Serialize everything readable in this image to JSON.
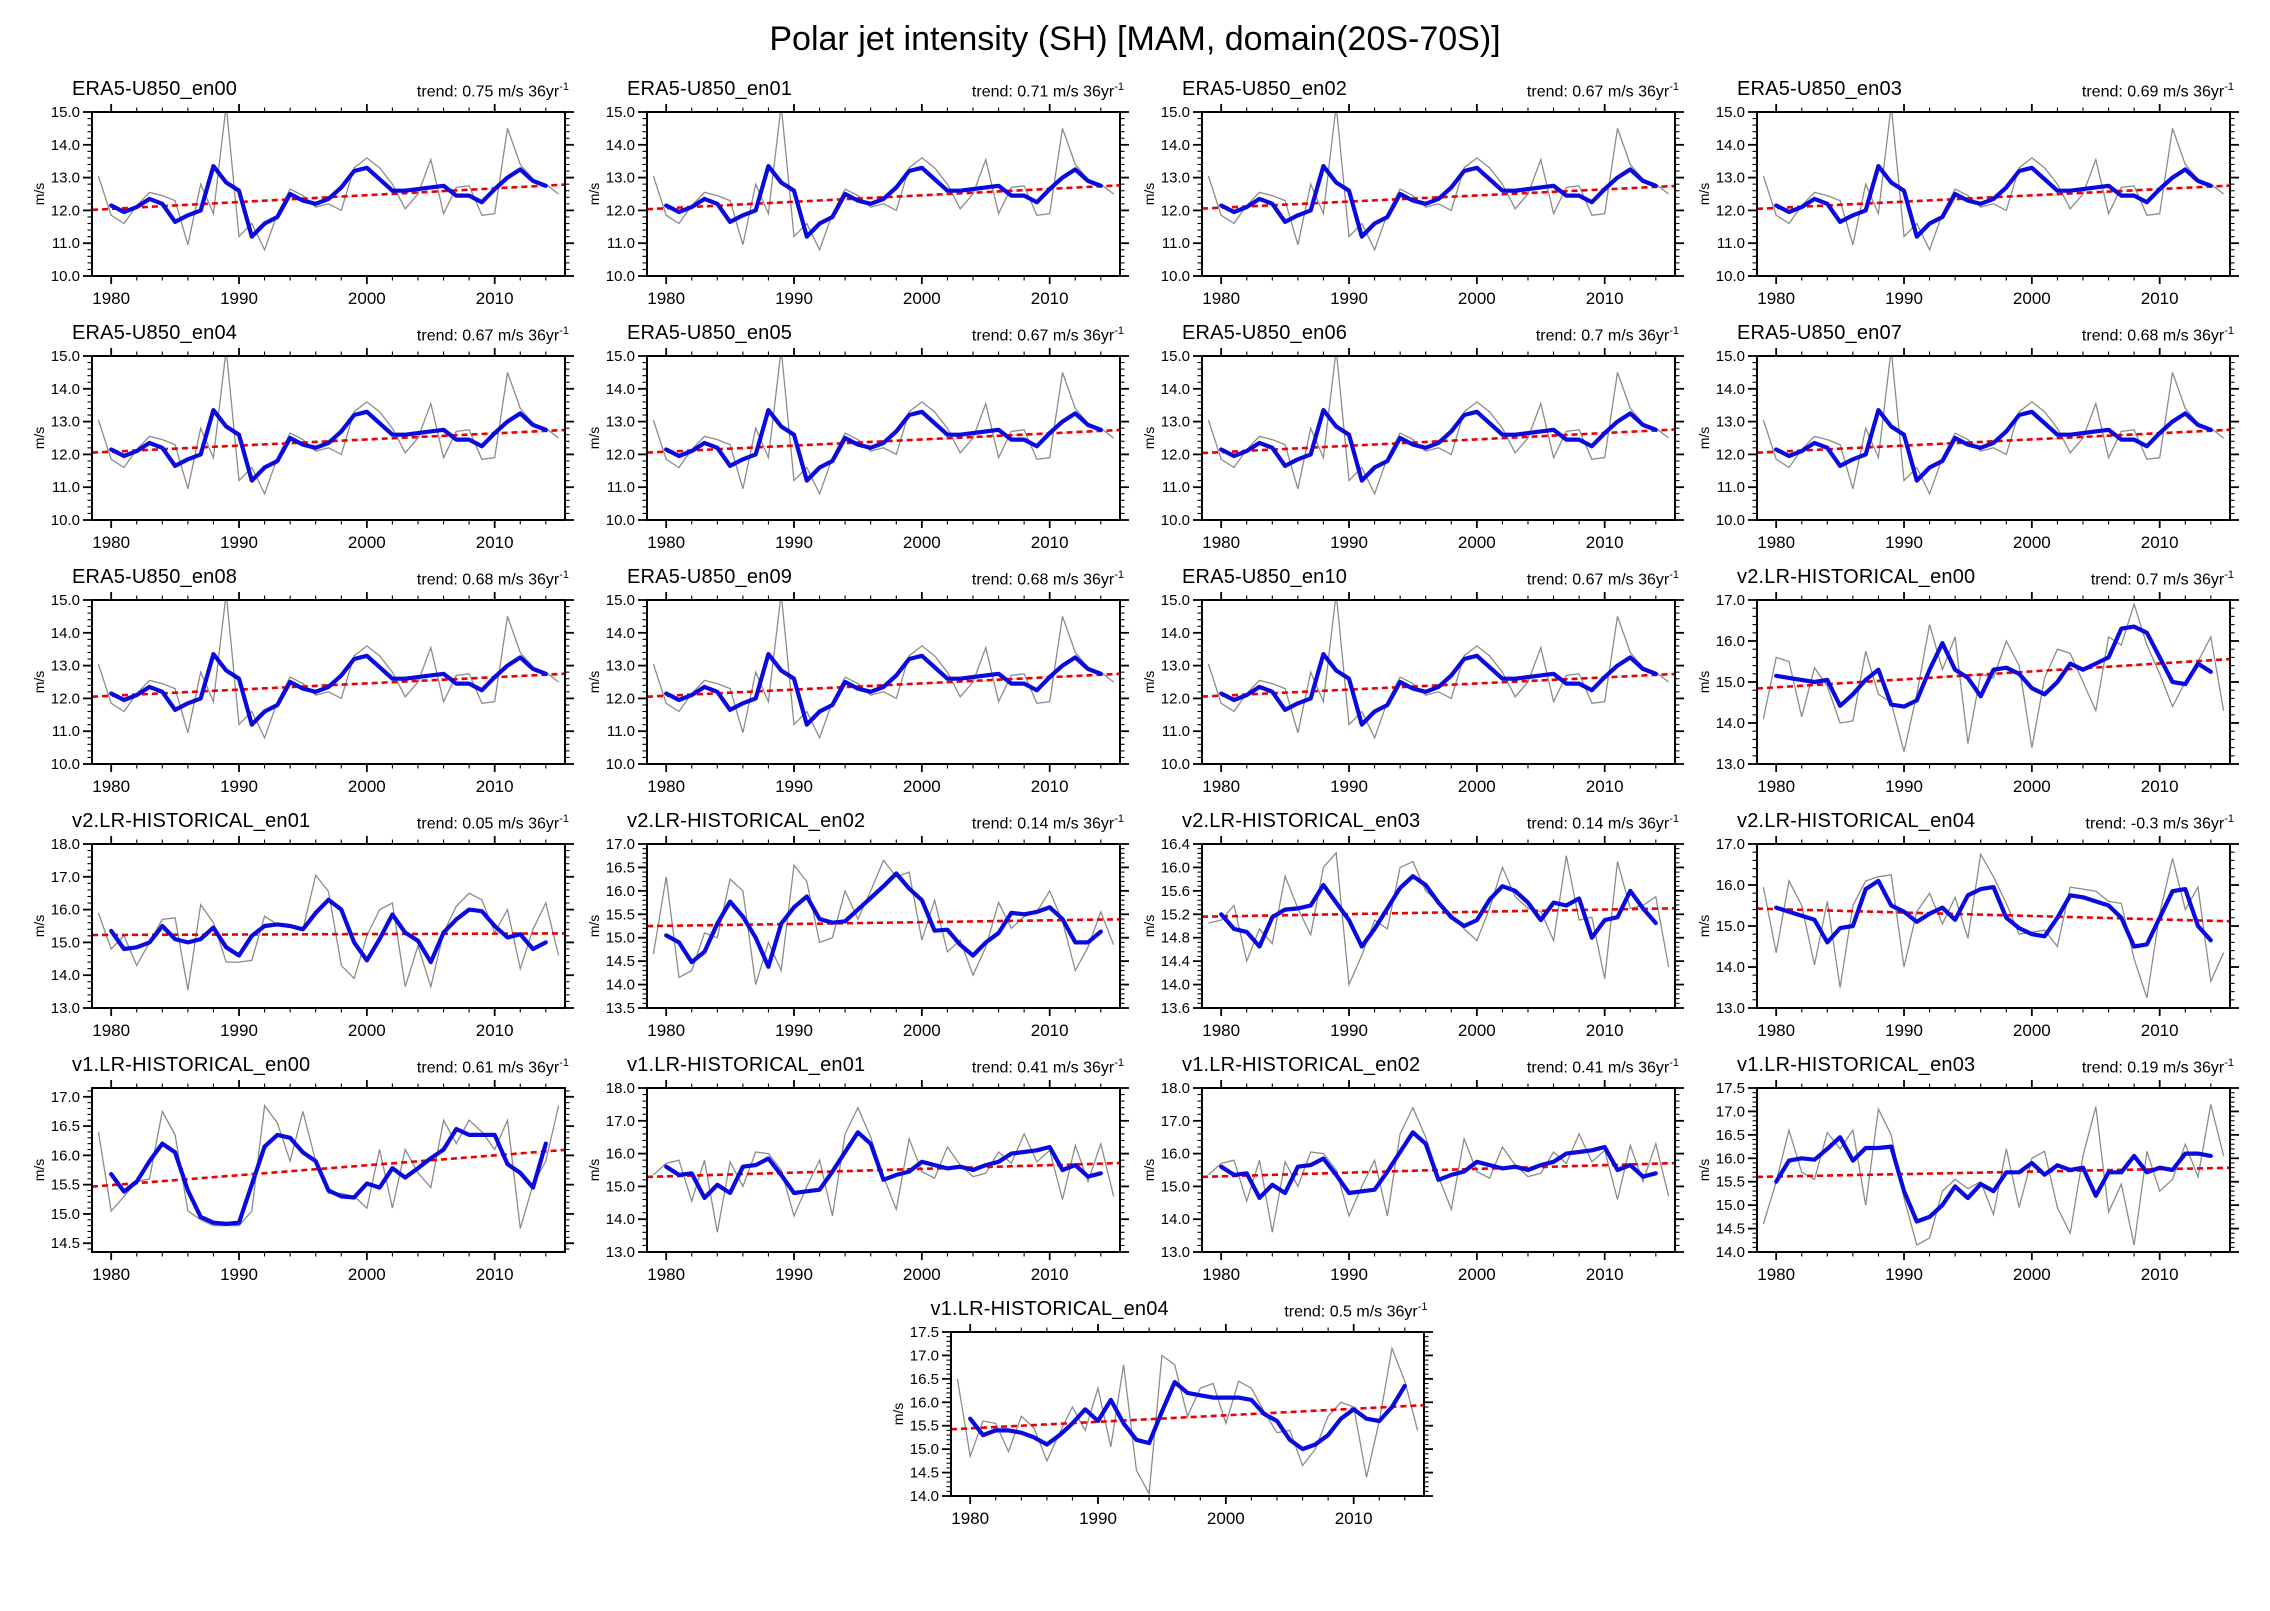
{
  "page": {
    "title": "Polar jet intensity (SH) [MAM, domain(20S-70S)]"
  },
  "trend_prefix": "trend: ",
  "trend_suffix": " m/s 36yr",
  "trend_sup": "-1",
  "axis": {
    "ylabel": "m/s",
    "xmin": 1978.5,
    "xmax": 2015.5,
    "x_major_ticks": [
      1980,
      1990,
      2000,
      2010
    ],
    "x_minor_step": 2,
    "gray_start_year": 1979,
    "blue_start_year": 1980
  },
  "colors": {
    "gray": "#8c8c8c",
    "blue": "#0a0ae0",
    "red": "#ee0000",
    "frame": "#000000"
  },
  "shared_series": {
    "era5": {
      "gray": [
        13.05,
        11.85,
        11.6,
        12.15,
        12.55,
        12.45,
        12.3,
        10.95,
        12.8,
        11.9,
        15.2,
        11.2,
        11.6,
        10.8,
        11.9,
        12.65,
        12.45,
        12.1,
        12.2,
        12.0,
        13.3,
        13.6,
        13.3,
        12.8,
        12.05,
        12.5,
        13.55,
        11.9,
        12.7,
        12.75,
        11.85,
        11.9,
        14.5,
        13.4,
        12.95,
        12.8,
        12.5
      ],
      "blue": [
        12.15,
        11.95,
        12.1,
        12.35,
        12.2,
        11.65,
        11.85,
        12.0,
        13.35,
        12.85,
        12.6,
        11.2,
        11.6,
        11.8,
        12.5,
        12.3,
        12.2,
        12.35,
        12.7,
        13.2,
        13.3,
        12.95,
        12.6,
        12.6,
        12.65,
        12.7,
        12.75,
        12.45,
        12.45,
        12.25,
        12.65,
        13.0,
        13.25,
        12.9,
        12.75
      ]
    },
    "v1en01": {
      "gray": [
        15.35,
        15.7,
        15.8,
        14.55,
        15.8,
        13.6,
        15.75,
        15.0,
        16.05,
        16.0,
        15.5,
        14.1,
        15.0,
        15.8,
        14.1,
        16.6,
        17.4,
        16.5,
        15.3,
        14.3,
        16.45,
        15.45,
        15.25,
        16.2,
        15.65,
        15.3,
        15.4,
        16.05,
        15.7,
        16.6,
        15.75,
        16.1,
        14.6,
        16.25,
        15.15,
        16.3,
        14.7
      ],
      "blue": [
        15.6,
        15.35,
        15.4,
        14.65,
        15.05,
        14.8,
        15.6,
        15.65,
        15.85,
        15.35,
        14.8,
        14.85,
        14.9,
        15.45,
        16.05,
        16.65,
        16.3,
        15.2,
        15.35,
        15.45,
        15.75,
        15.65,
        15.55,
        15.6,
        15.5,
        15.65,
        15.75,
        16.0,
        16.05,
        16.1,
        16.2,
        15.5,
        15.65,
        15.3,
        15.4
      ]
    }
  },
  "chart_data": [
    {
      "type": "line",
      "title": "ERA5-U850_en00",
      "trend_value": "0.75",
      "ylabel": "m/s",
      "ylim": [
        10.0,
        15.0
      ],
      "ytick_step": 1.0,
      "trend_mid": 12.4,
      "ref": "era5"
    },
    {
      "type": "line",
      "title": "ERA5-U850_en01",
      "trend_value": "0.71",
      "ylabel": "m/s",
      "ylim": [
        10.0,
        15.0
      ],
      "ytick_step": 1.0,
      "trend_mid": 12.4,
      "ref": "era5"
    },
    {
      "type": "line",
      "title": "ERA5-U850_en02",
      "trend_value": "0.67",
      "ylabel": "m/s",
      "ylim": [
        10.0,
        15.0
      ],
      "ytick_step": 1.0,
      "trend_mid": 12.4,
      "ref": "era5"
    },
    {
      "type": "line",
      "title": "ERA5-U850_en03",
      "trend_value": "0.69",
      "ylabel": "m/s",
      "ylim": [
        10.0,
        15.0
      ],
      "ytick_step": 1.0,
      "trend_mid": 12.4,
      "ref": "era5"
    },
    {
      "type": "line",
      "title": "ERA5-U850_en04",
      "trend_value": "0.67",
      "ylabel": "m/s",
      "ylim": [
        10.0,
        15.0
      ],
      "ytick_step": 1.0,
      "trend_mid": 12.4,
      "ref": "era5"
    },
    {
      "type": "line",
      "title": "ERA5-U850_en05",
      "trend_value": "0.67",
      "ylabel": "m/s",
      "ylim": [
        10.0,
        15.0
      ],
      "ytick_step": 1.0,
      "trend_mid": 12.4,
      "ref": "era5"
    },
    {
      "type": "line",
      "title": "ERA5-U850_en06",
      "trend_value": "0.7",
      "ylabel": "m/s",
      "ylim": [
        10.0,
        15.0
      ],
      "ytick_step": 1.0,
      "trend_mid": 12.4,
      "ref": "era5"
    },
    {
      "type": "line",
      "title": "ERA5-U850_en07",
      "trend_value": "0.68",
      "ylabel": "m/s",
      "ylim": [
        10.0,
        15.0
      ],
      "ytick_step": 1.0,
      "trend_mid": 12.4,
      "ref": "era5"
    },
    {
      "type": "line",
      "title": "ERA5-U850_en08",
      "trend_value": "0.68",
      "ylabel": "m/s",
      "ylim": [
        10.0,
        15.0
      ],
      "ytick_step": 1.0,
      "trend_mid": 12.4,
      "ref": "era5"
    },
    {
      "type": "line",
      "title": "ERA5-U850_en09",
      "trend_value": "0.68",
      "ylabel": "m/s",
      "ylim": [
        10.0,
        15.0
      ],
      "ytick_step": 1.0,
      "trend_mid": 12.4,
      "ref": "era5"
    },
    {
      "type": "line",
      "title": "ERA5-U850_en10",
      "trend_value": "0.67",
      "ylabel": "m/s",
      "ylim": [
        10.0,
        15.0
      ],
      "ytick_step": 1.0,
      "trend_mid": 12.4,
      "ref": "era5"
    },
    {
      "type": "line",
      "title": "v2.LR-HISTORICAL_en00",
      "trend_value": "0.7",
      "ylabel": "m/s",
      "ylim": [
        13.0,
        17.0
      ],
      "ytick_step": 1.0,
      "trend_mid": 15.2,
      "gray": [
        14.1,
        15.6,
        15.5,
        14.15,
        15.35,
        14.9,
        14.0,
        14.05,
        15.75,
        14.7,
        14.5,
        13.3,
        14.7,
        16.4,
        15.3,
        16.1,
        13.5,
        15.2,
        15.1,
        16.0,
        15.4,
        13.4,
        15.1,
        15.8,
        15.7,
        15.0,
        14.3,
        16.1,
        15.9,
        16.9,
        15.9,
        15.2,
        14.4,
        15.0,
        15.5,
        16.1,
        14.3
      ],
      "blue": [
        15.15,
        15.1,
        15.05,
        15.0,
        15.05,
        14.42,
        14.7,
        15.05,
        15.3,
        14.45,
        14.4,
        14.55,
        15.3,
        15.95,
        15.3,
        15.1,
        14.65,
        15.3,
        15.35,
        15.2,
        14.85,
        14.7,
        15.0,
        15.45,
        15.3,
        15.45,
        15.6,
        16.3,
        16.35,
        16.2,
        15.6,
        15.0,
        14.95,
        15.45,
        15.25
      ]
    },
    {
      "type": "line",
      "title": "v2.LR-HISTORICAL_en01",
      "trend_value": "0.05",
      "ylabel": "m/s",
      "ylim": [
        13.0,
        18.0
      ],
      "ytick_step": 1.0,
      "trend_mid": 15.25,
      "gray": [
        15.9,
        14.8,
        15.2,
        14.3,
        15.0,
        15.7,
        15.75,
        13.55,
        16.15,
        15.6,
        14.4,
        14.4,
        14.45,
        15.8,
        15.55,
        15.5,
        15.4,
        17.05,
        16.55,
        14.3,
        13.9,
        15.2,
        16.0,
        16.2,
        13.65,
        14.9,
        13.65,
        15.3,
        16.1,
        16.5,
        16.3,
        15.3,
        16.0,
        14.2,
        15.4,
        16.2,
        14.6
      ],
      "blue": [
        15.35,
        14.8,
        14.85,
        15.0,
        15.5,
        15.1,
        15.0,
        15.1,
        15.45,
        14.85,
        14.6,
        15.2,
        15.5,
        15.55,
        15.5,
        15.4,
        15.9,
        16.3,
        16.0,
        15.0,
        14.45,
        15.1,
        15.85,
        15.3,
        15.05,
        14.4,
        15.3,
        15.7,
        16.0,
        15.95,
        15.5,
        15.15,
        15.25,
        14.8,
        15.0
      ]
    },
    {
      "type": "line",
      "title": "v2.LR-HISTORICAL_en02",
      "trend_value": "0.14",
      "ylabel": "m/s",
      "ylim": [
        13.5,
        17.0
      ],
      "ytick_step": 0.5,
      "trend_mid": 15.32,
      "gray": [
        14.65,
        16.3,
        14.15,
        14.3,
        15.1,
        15.0,
        16.25,
        16.0,
        14.0,
        14.9,
        14.3,
        16.55,
        16.2,
        14.9,
        15.0,
        16.0,
        15.4,
        16.0,
        16.65,
        16.3,
        16.4,
        14.95,
        15.8,
        14.7,
        14.95,
        14.2,
        14.8,
        15.75,
        15.2,
        15.45,
        15.55,
        16.0,
        15.35,
        14.3,
        14.8,
        15.55,
        14.85
      ],
      "blue": [
        15.05,
        14.9,
        14.48,
        14.7,
        15.3,
        15.77,
        15.45,
        15.0,
        14.38,
        15.3,
        15.65,
        15.88,
        15.4,
        15.32,
        15.35,
        15.6,
        15.85,
        16.1,
        16.37,
        16.05,
        15.8,
        15.15,
        15.17,
        14.85,
        14.62,
        14.9,
        15.1,
        15.53,
        15.5,
        15.55,
        15.65,
        15.4,
        14.9,
        14.9,
        15.13
      ]
    },
    {
      "type": "line",
      "title": "v2.LR-HISTORICAL_en03",
      "trend_value": "0.14",
      "ylabel": "m/s",
      "ylim": [
        13.6,
        16.4
      ],
      "ytick_step": 0.4,
      "trend_mid": 15.23,
      "gray": [
        15.05,
        15.1,
        15.35,
        14.4,
        14.95,
        14.7,
        15.85,
        15.3,
        14.85,
        16.0,
        16.25,
        14.0,
        14.5,
        15.1,
        14.95,
        16.0,
        16.1,
        15.6,
        15.4,
        15.2,
        14.95,
        14.75,
        15.3,
        16.0,
        15.5,
        15.3,
        15.25,
        14.75,
        16.2,
        15.1,
        15.15,
        14.1,
        16.1,
        15.3,
        15.35,
        15.5,
        14.3
      ],
      "blue": [
        15.2,
        14.95,
        14.9,
        14.65,
        15.15,
        15.28,
        15.3,
        15.35,
        15.7,
        15.4,
        15.1,
        14.65,
        14.95,
        15.3,
        15.65,
        15.85,
        15.7,
        15.4,
        15.15,
        15.0,
        15.1,
        15.45,
        15.68,
        15.6,
        15.4,
        15.1,
        15.4,
        15.35,
        15.47,
        14.8,
        15.1,
        15.15,
        15.6,
        15.3,
        15.05
      ]
    },
    {
      "type": "line",
      "title": "v2.LR-HISTORICAL_en04",
      "trend_value": "-0.3",
      "ylabel": "m/s",
      "ylim": [
        13.0,
        17.0
      ],
      "ytick_step": 1.0,
      "trend_mid": 15.27,
      "gray": [
        15.95,
        14.35,
        16.1,
        15.5,
        14.05,
        15.6,
        13.5,
        15.5,
        16.1,
        16.2,
        16.25,
        14.0,
        15.35,
        15.8,
        15.05,
        15.7,
        14.7,
        16.75,
        16.2,
        15.55,
        14.8,
        14.85,
        14.9,
        14.5,
        15.95,
        15.9,
        15.85,
        15.6,
        15.55,
        14.2,
        13.25,
        15.3,
        16.65,
        15.4,
        15.95,
        13.65,
        14.35
      ],
      "blue": [
        15.45,
        15.35,
        15.25,
        15.15,
        14.6,
        14.95,
        15.0,
        15.9,
        16.1,
        15.5,
        15.35,
        15.1,
        15.3,
        15.45,
        15.15,
        15.75,
        15.9,
        15.95,
        15.2,
        14.95,
        14.8,
        14.75,
        15.2,
        15.75,
        15.7,
        15.6,
        15.5,
        15.2,
        14.5,
        14.55,
        15.2,
        15.85,
        15.9,
        15.0,
        14.65
      ]
    },
    {
      "type": "line",
      "title": "v1.LR-HISTORICAL_en00",
      "trend_value": "0.61",
      "ylabel": "m/s",
      "ylim": [
        14.35,
        17.15
      ],
      "ytick_step": 0.5,
      "trend_mid": 15.78,
      "gray": [
        16.4,
        15.05,
        15.3,
        15.55,
        15.6,
        16.75,
        16.35,
        15.05,
        14.9,
        14.8,
        14.8,
        14.8,
        15.05,
        16.85,
        16.55,
        15.9,
        16.75,
        15.9,
        15.35,
        15.35,
        15.3,
        15.1,
        16.1,
        15.1,
        16.1,
        15.7,
        15.45,
        16.6,
        16.2,
        16.6,
        16.4,
        16.1,
        16.6,
        14.75,
        15.5,
        15.9,
        16.85
      ],
      "blue": [
        15.68,
        15.38,
        15.55,
        15.9,
        16.2,
        16.05,
        15.4,
        14.95,
        14.85,
        14.83,
        14.85,
        15.5,
        16.15,
        16.35,
        16.3,
        16.05,
        15.9,
        15.4,
        15.3,
        15.28,
        15.52,
        15.45,
        15.78,
        15.62,
        15.78,
        15.95,
        16.1,
        16.45,
        16.35,
        16.35,
        16.35,
        15.85,
        15.7,
        15.45,
        16.2
      ]
    },
    {
      "type": "line",
      "title": "v1.LR-HISTORICAL_en01",
      "trend_value": "0.41",
      "ylabel": "m/s",
      "ylim": [
        13.0,
        18.0
      ],
      "ytick_step": 1.0,
      "trend_mid": 15.5,
      "ref": "v1en01"
    },
    {
      "type": "line",
      "title": "v1.LR-HISTORICAL_en02",
      "trend_value": "0.41",
      "ylabel": "m/s",
      "ylim": [
        13.0,
        18.0
      ],
      "ytick_step": 1.0,
      "trend_mid": 15.5,
      "ref": "v1en01"
    },
    {
      "type": "line",
      "title": "v1.LR-HISTORICAL_en03",
      "trend_value": "0.19",
      "ylabel": "m/s",
      "ylim": [
        14.0,
        17.5
      ],
      "ytick_step": 0.5,
      "trend_mid": 15.7,
      "gray": [
        14.6,
        15.5,
        16.6,
        15.7,
        15.55,
        16.55,
        16.2,
        16.6,
        15.0,
        17.05,
        16.5,
        15.15,
        14.15,
        14.3,
        15.3,
        15.55,
        15.35,
        15.5,
        14.8,
        16.2,
        14.95,
        16.0,
        16.15,
        14.95,
        14.4,
        16.05,
        17.1,
        14.85,
        15.45,
        14.15,
        16.15,
        15.3,
        15.55,
        16.3,
        15.6,
        17.15,
        16.05
      ],
      "blue": [
        15.5,
        15.95,
        16.0,
        15.97,
        16.2,
        16.45,
        15.95,
        16.22,
        16.22,
        16.25,
        15.3,
        14.65,
        14.75,
        15.0,
        15.4,
        15.15,
        15.45,
        15.3,
        15.7,
        15.7,
        15.9,
        15.65,
        15.85,
        15.75,
        15.8,
        15.2,
        15.7,
        15.7,
        16.05,
        15.7,
        15.8,
        15.75,
        16.1,
        16.1,
        16.05
      ]
    },
    {
      "type": "line",
      "title": "v1.LR-HISTORICAL_en04",
      "trend_value": "0.5",
      "ylabel": "m/s",
      "ylim": [
        14.0,
        17.5
      ],
      "ytick_step": 0.5,
      "trend_mid": 15.68,
      "gray": [
        16.5,
        14.85,
        15.6,
        15.55,
        14.95,
        15.7,
        15.45,
        14.75,
        15.35,
        15.9,
        15.4,
        16.3,
        15.05,
        16.8,
        14.55,
        14.05,
        17.0,
        16.8,
        15.7,
        16.3,
        16.4,
        15.55,
        16.45,
        16.3,
        15.8,
        15.35,
        15.4,
        14.65,
        15.0,
        15.7,
        16.0,
        15.9,
        14.4,
        15.6,
        17.15,
        16.45,
        15.4
      ],
      "blue": [
        15.65,
        15.3,
        15.4,
        15.4,
        15.35,
        15.25,
        15.1,
        15.3,
        15.55,
        15.85,
        15.6,
        16.05,
        15.55,
        15.2,
        15.13,
        15.8,
        16.43,
        16.2,
        16.15,
        16.1,
        16.1,
        16.1,
        16.05,
        15.75,
        15.6,
        15.2,
        15.0,
        15.1,
        15.3,
        15.65,
        15.85,
        15.65,
        15.6,
        15.9,
        16.35
      ]
    }
  ]
}
